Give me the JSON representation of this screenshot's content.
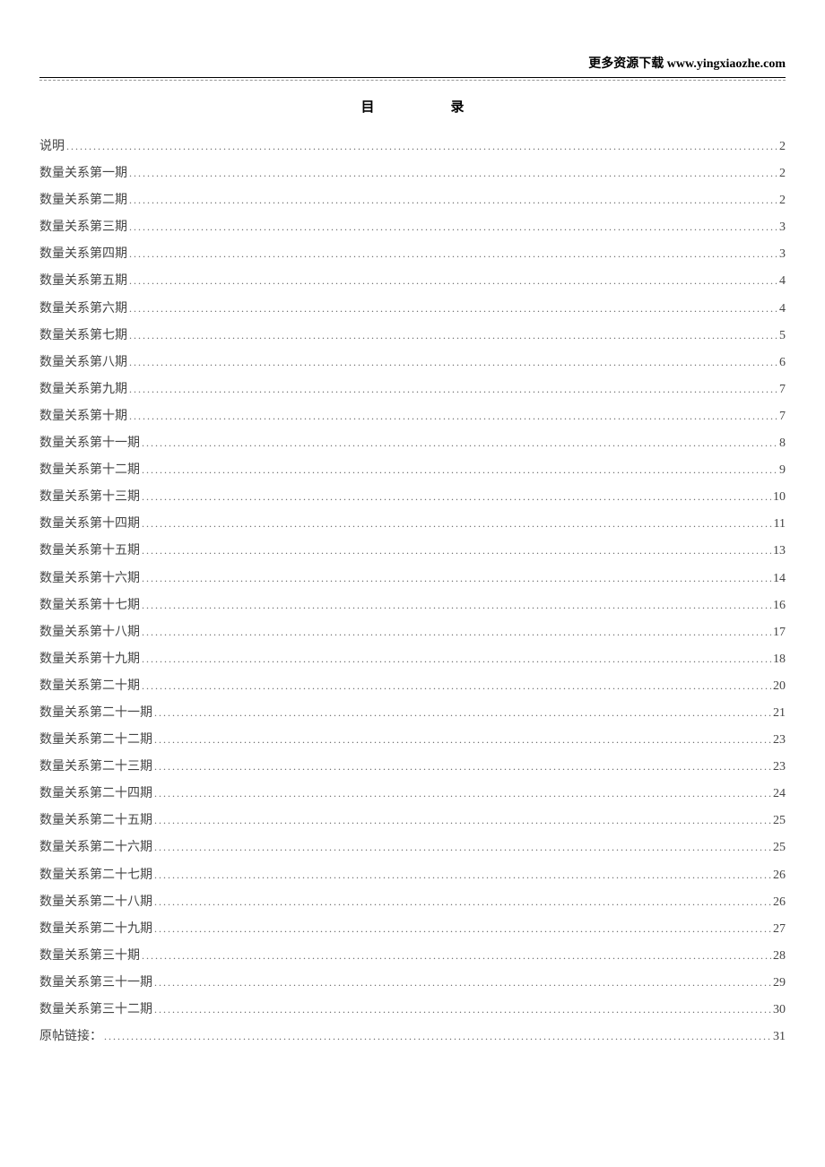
{
  "header_text": "更多资源下载 www.yingxiaozhe.com",
  "title": "目录",
  "text_color": "#444444",
  "header_color": "#000000",
  "dots_color": "#666666",
  "background_color": "#ffffff",
  "font_family": "SimSun",
  "entry_fontsize": 14,
  "title_fontsize": 15,
  "header_fontsize": 14,
  "line_height": 2.15,
  "toc_entries": [
    {
      "label": "说明",
      "page": "2"
    },
    {
      "label": "数量关系第一期",
      "page": "2"
    },
    {
      "label": "数量关系第二期",
      "page": "2"
    },
    {
      "label": "数量关系第三期",
      "page": "3"
    },
    {
      "label": "数量关系第四期",
      "page": "3"
    },
    {
      "label": "数量关系第五期",
      "page": "4"
    },
    {
      "label": "数量关系第六期",
      "page": "4"
    },
    {
      "label": "数量关系第七期",
      "page": "5"
    },
    {
      "label": "数量关系第八期",
      "page": "6"
    },
    {
      "label": "数量关系第九期",
      "page": "7"
    },
    {
      "label": "数量关系第十期",
      "page": "7"
    },
    {
      "label": "数量关系第十一期",
      "page": "8"
    },
    {
      "label": "数量关系第十二期",
      "page": "9"
    },
    {
      "label": "数量关系第十三期",
      "page": "10"
    },
    {
      "label": "数量关系第十四期",
      "page": "11"
    },
    {
      "label": "数量关系第十五期",
      "page": "13"
    },
    {
      "label": "数量关系第十六期",
      "page": "14"
    },
    {
      "label": "数量关系第十七期",
      "page": "16"
    },
    {
      "label": "数量关系第十八期",
      "page": "17"
    },
    {
      "label": "数量关系第十九期",
      "page": "18"
    },
    {
      "label": "数量关系第二十期",
      "page": "20"
    },
    {
      "label": "数量关系第二十一期",
      "page": "21"
    },
    {
      "label": "数量关系第二十二期",
      "page": "23"
    },
    {
      "label": "数量关系第二十三期",
      "page": "23"
    },
    {
      "label": "数量关系第二十四期",
      "page": "24"
    },
    {
      "label": "数量关系第二十五期",
      "page": "25"
    },
    {
      "label": "数量关系第二十六期",
      "page": "25"
    },
    {
      "label": "数量关系第二十七期",
      "page": "26"
    },
    {
      "label": "数量关系第二十八期",
      "page": "26"
    },
    {
      "label": "数量关系第二十九期",
      "page": "27"
    },
    {
      "label": "数量关系第三十期",
      "page": "28"
    },
    {
      "label": "数量关系第三十一期",
      "page": "29"
    },
    {
      "label": "数量关系第三十二期",
      "page": "30"
    },
    {
      "label": "原帖链接：",
      "page": "31"
    }
  ]
}
